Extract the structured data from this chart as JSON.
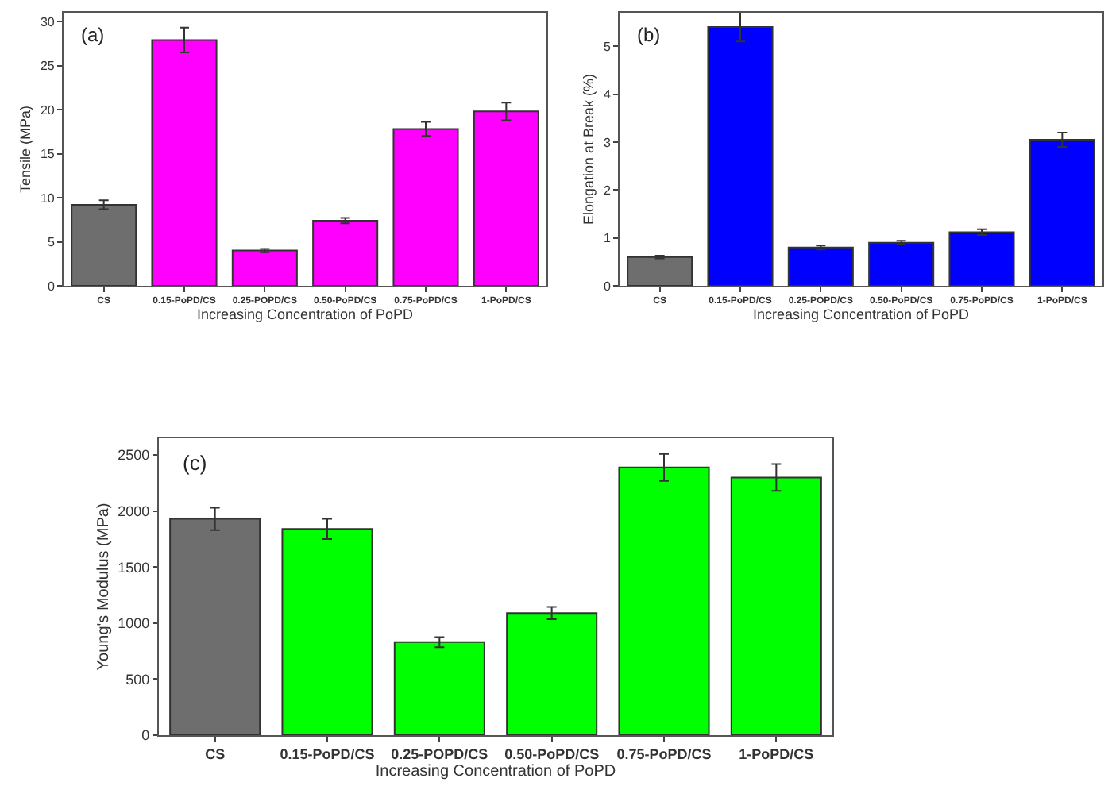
{
  "chart_data": [
    {
      "type": "bar",
      "ylabel": "Tensile (MPa)",
      "xlabel": "Increasing Concentration of PoPD",
      "annotations": [
        "(a)"
      ],
      "categories": [
        "CS",
        "0.15-PoPD/CS",
        "0.25-POPD/CS",
        "0.50-PoPD/CS",
        "0.75-PoPD/CS",
        "1-PoPD/CS"
      ],
      "values": [
        9.2,
        27.9,
        4.0,
        7.4,
        17.8,
        19.8
      ],
      "errors": [
        0.5,
        1.4,
        0.2,
        0.3,
        0.8,
        1.0
      ],
      "colors": [
        "#6e6e6e",
        "#ff00ff",
        "#ff00ff",
        "#ff00ff",
        "#ff00ff",
        "#ff00ff"
      ],
      "ylim": [
        0,
        31
      ],
      "yticks": [
        0,
        5,
        10,
        15,
        20,
        25,
        30
      ],
      "grid": false
    },
    {
      "type": "bar",
      "ylabel": "Elongation at Break (%)",
      "xlabel": "Increasing Concentration of PoPD",
      "annotations": [
        "(b)"
      ],
      "categories": [
        "CS",
        "0.15-PoPD/CS",
        "0.25-POPD/CS",
        "0.50-PoPD/CS",
        "0.75-PoPD/CS",
        "1-PoPD/CS"
      ],
      "values": [
        0.6,
        5.4,
        0.8,
        0.9,
        1.12,
        3.05
      ],
      "errors": [
        0.03,
        0.3,
        0.04,
        0.04,
        0.06,
        0.15
      ],
      "colors": [
        "#6e6e6e",
        "#0000ff",
        "#0000ff",
        "#0000ff",
        "#0000ff",
        "#0000ff"
      ],
      "ylim": [
        0,
        5.7
      ],
      "yticks": [
        0,
        1,
        2,
        3,
        4,
        5
      ],
      "grid": false
    },
    {
      "type": "bar",
      "ylabel": "Young's Modulus (MPa)",
      "xlabel": "Increasing Concentration of PoPD",
      "annotations": [
        "(c)"
      ],
      "categories": [
        "CS",
        "0.15-PoPD/CS",
        "0.25-POPD/CS",
        "0.50-PoPD/CS",
        "0.75-PoPD/CS",
        "1-PoPD/CS"
      ],
      "values": [
        1930,
        1840,
        830,
        1090,
        2390,
        2300
      ],
      "errors": [
        100,
        90,
        45,
        55,
        120,
        120
      ],
      "colors": [
        "#6e6e6e",
        "#00ff00",
        "#00ff00",
        "#00ff00",
        "#00ff00",
        "#00ff00"
      ],
      "ylim": [
        0,
        2650
      ],
      "yticks": [
        0,
        500,
        1000,
        1500,
        2000,
        2500
      ],
      "grid": false
    }
  ]
}
